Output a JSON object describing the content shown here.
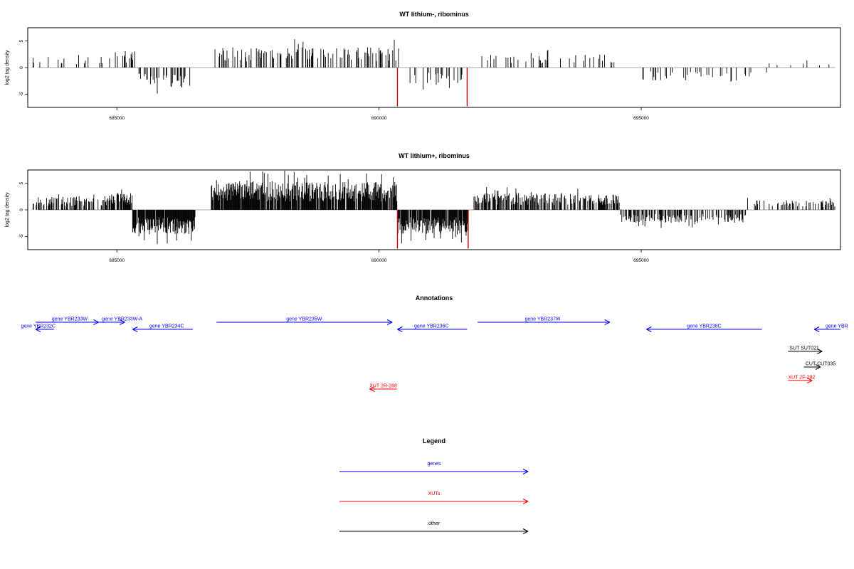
{
  "chart_data": [
    {
      "type": "bar",
      "title": "WT lithium-, ribominus",
      "ylabel": "log2 tag density",
      "xlabel": "",
      "xlim": [
        683300,
        698800
      ],
      "ylim": [
        -7.5,
        7.5
      ],
      "yticks": [
        -5,
        0,
        5
      ],
      "ytick_labels": [
        "-5",
        "0",
        "5"
      ],
      "xticks": [
        685000,
        690000,
        695000
      ],
      "xtick_labels": [
        "685000",
        "690000",
        "695000"
      ],
      "grid": false,
      "colors": {
        "default": "#000000",
        "highlight": "#cc0000"
      },
      "density": 0.45,
      "segments": [
        {
          "start": 683400,
          "end": 684900,
          "sign": 1,
          "max": 3,
          "p": 0.22
        },
        {
          "start": 684900,
          "end": 685400,
          "sign": 1,
          "max": 4.5,
          "p": 0.5
        },
        {
          "start": 685400,
          "end": 686400,
          "sign": -1,
          "max": 5.2,
          "p": 0.8
        },
        {
          "start": 686800,
          "end": 690400,
          "sign": 1,
          "max": 5.5,
          "p": 0.6
        },
        {
          "start": 690400,
          "end": 691700,
          "sign": -1,
          "max": 4.5,
          "p": 0.6
        },
        {
          "start": 691900,
          "end": 694500,
          "sign": 1,
          "max": 3.5,
          "p": 0.3
        },
        {
          "start": 695000,
          "end": 697400,
          "sign": -1,
          "max": 3.5,
          "p": 0.45
        },
        {
          "start": 697400,
          "end": 698700,
          "sign": 1,
          "max": 2,
          "p": 0.12
        }
      ],
      "highlights": [
        {
          "x": 690350,
          "value": -7.3
        },
        {
          "x": 691680,
          "value": -7.3
        }
      ]
    },
    {
      "type": "bar",
      "title": "WT lithium+, ribominus",
      "ylabel": "log2 tag density",
      "xlabel": "",
      "xlim": [
        683300,
        698800
      ],
      "ylim": [
        -7.5,
        7.5
      ],
      "yticks": [
        -5,
        0,
        5
      ],
      "ytick_labels": [
        "-5",
        "0",
        "5"
      ],
      "xticks": [
        685000,
        690000,
        695000
      ],
      "xtick_labels": [
        "685000",
        "690000",
        "695000"
      ],
      "grid": false,
      "colors": {
        "default": "#000000",
        "highlight": "#cc0000"
      },
      "density": 1.0,
      "segments": [
        {
          "start": 683400,
          "end": 684900,
          "sign": 1,
          "max": 3.5,
          "p": 0.5
        },
        {
          "start": 684900,
          "end": 685300,
          "sign": 1,
          "max": 4.5,
          "p": 0.8
        },
        {
          "start": 685300,
          "end": 686500,
          "sign": -1,
          "max": 6.5,
          "p": 0.95
        },
        {
          "start": 686800,
          "end": 690350,
          "sign": 1,
          "max": 7.5,
          "p": 0.9
        },
        {
          "start": 690350,
          "end": 691700,
          "sign": -1,
          "max": 6.5,
          "p": 0.9
        },
        {
          "start": 691800,
          "end": 694600,
          "sign": 1,
          "max": 4.5,
          "p": 0.6
        },
        {
          "start": 694600,
          "end": 697000,
          "sign": -1,
          "max": 3.5,
          "p": 0.5
        },
        {
          "start": 697000,
          "end": 698700,
          "sign": 1,
          "max": 2.5,
          "p": 0.3
        }
      ],
      "highlights": [
        {
          "x": 690350,
          "value": -7.3
        },
        {
          "x": 691700,
          "value": -7.3
        }
      ]
    }
  ],
  "annotations": {
    "title": "Annotations",
    "features": [
      {
        "label": "gene YBR232C",
        "start": 683450,
        "end": 683800,
        "strand": "-",
        "type": "gene",
        "row": 1,
        "label_x": 683500
      },
      {
        "label": "gene YBR233W",
        "start": 683450,
        "end": 684650,
        "strand": "+",
        "type": "gene",
        "row": 0,
        "label_x": 684100
      },
      {
        "label": "gene YBR233W-A",
        "start": 684650,
        "end": 685150,
        "strand": "+",
        "type": "gene",
        "row": 0,
        "label_x": 685100
      },
      {
        "label": "gene YBR234C",
        "start": 685300,
        "end": 686450,
        "strand": "-",
        "type": "gene",
        "row": 1,
        "label_x": 685950
      },
      {
        "label": "gene YBR235W",
        "start": 686900,
        "end": 690250,
        "strand": "+",
        "type": "gene",
        "row": 0,
        "label_x": 688570
      },
      {
        "label": "gene YBR236C",
        "start": 690350,
        "end": 691680,
        "strand": "-",
        "type": "gene",
        "row": 1,
        "label_x": 691000
      },
      {
        "label": "gene YBR237W",
        "start": 691880,
        "end": 694400,
        "strand": "+",
        "type": "gene",
        "row": 0,
        "label_x": 693120
      },
      {
        "label": "gene YBR238C",
        "start": 695100,
        "end": 697300,
        "strand": "-",
        "type": "gene",
        "row": 1,
        "label_x": 696200
      },
      {
        "label": "gene YBR",
        "start": 698300,
        "end": 698800,
        "strand": "-",
        "type": "gene",
        "row": 1,
        "label_x": 698730
      },
      {
        "label": "SUT SUT021",
        "start": 697800,
        "end": 698450,
        "strand": "+",
        "type": "other",
        "row": 2,
        "label_x": 698110
      },
      {
        "label": "CUT CUT035",
        "start": 698100,
        "end": 698420,
        "strand": "+",
        "type": "other",
        "row": 3,
        "label_x": 698420
      },
      {
        "label": "XUT 2F-282",
        "start": 697800,
        "end": 698260,
        "strand": "+",
        "type": "xut",
        "row": 4,
        "label_x": 698060
      },
      {
        "label": "XUT 2R-288",
        "start": 689820,
        "end": 690340,
        "strand": "-",
        "type": "xut",
        "row": 5,
        "label_x": 690080
      }
    ]
  },
  "legend": {
    "title": "Legend",
    "items": [
      {
        "label": "genes",
        "color": "#0000ff"
      },
      {
        "label": "XUTs",
        "color": "#ff0000"
      },
      {
        "label": "other",
        "color": "#000000"
      }
    ]
  }
}
